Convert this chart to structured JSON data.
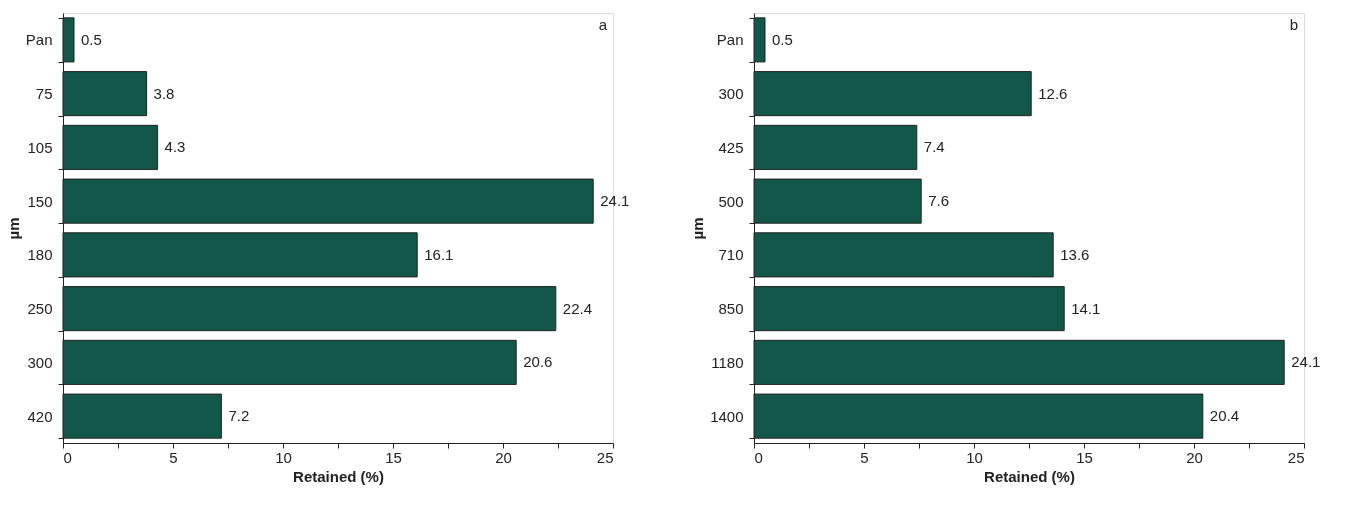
{
  "chart_data": [
    {
      "type": "bar",
      "orientation": "horizontal",
      "xlabel": "Retained (%)",
      "ylabel": "µm",
      "categories": [
        "Pan",
        "75",
        "105",
        "150",
        "180",
        "250",
        "300",
        "420"
      ],
      "series": [
        {
          "color": "#12574a",
          "values": [
            0.5,
            3.8,
            4.3,
            24.1,
            16.1,
            22.4,
            20.6,
            7.2
          ]
        }
      ],
      "xlim": [
        0,
        25
      ],
      "xticks": [
        0,
        {
          "value": 2.5,
          "label": null
        },
        5,
        {
          "value": 7.5,
          "label": null
        },
        10,
        {
          "value": 12.5,
          "label": null
        },
        15,
        {
          "value": 17.5,
          "label": null
        },
        20,
        {
          "value": 22.5,
          "label": null
        },
        25
      ],
      "data_labels": true,
      "grid": false,
      "legend": false,
      "annotations": [
        "a"
      ]
    },
    {
      "type": "bar",
      "orientation": "horizontal",
      "xlabel": "Retained (%)",
      "ylabel": "µm",
      "categories": [
        "Pan",
        "300",
        "425",
        "500",
        "710",
        "850",
        "1180",
        "1400"
      ],
      "series": [
        {
          "color": "#12574a",
          "values": [
            0.5,
            12.6,
            7.4,
            7.6,
            13.6,
            14.1,
            24.1,
            20.4
          ]
        }
      ],
      "xlim": [
        0,
        25
      ],
      "xticks": [
        0,
        {
          "value": 2.5,
          "label": null
        },
        5,
        {
          "value": 7.5,
          "label": null
        },
        10,
        {
          "value": 12.5,
          "label": null
        },
        15,
        {
          "value": 17.5,
          "label": null
        },
        20,
        {
          "value": 22.5,
          "label": null
        },
        25
      ],
      "data_labels": true,
      "grid": false,
      "legend": false,
      "annotations": [
        "b"
      ]
    }
  ]
}
